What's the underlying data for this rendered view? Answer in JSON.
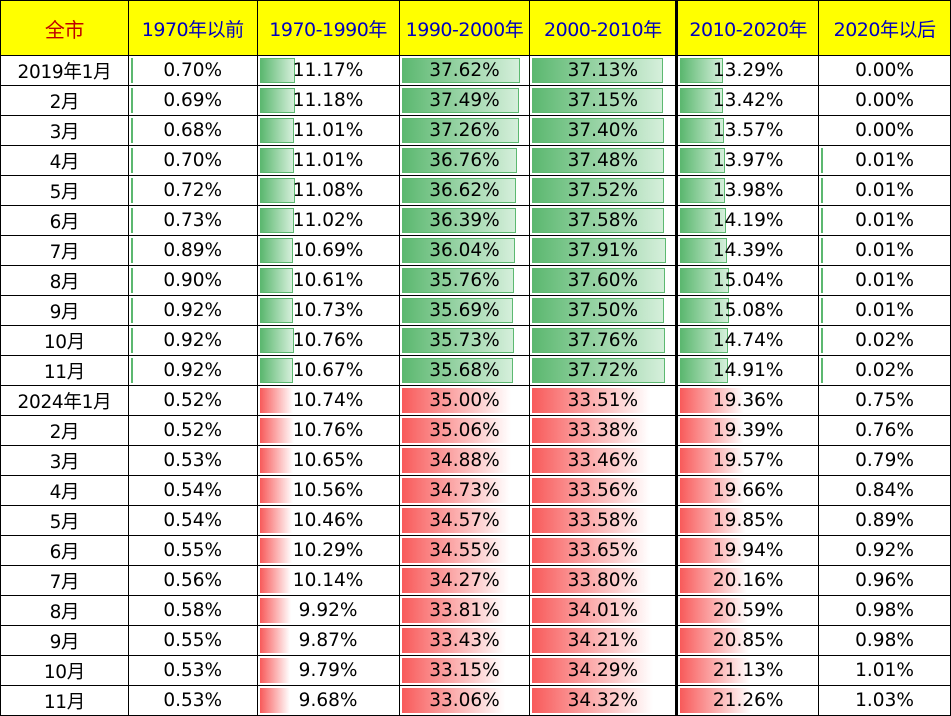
{
  "table": {
    "headers": [
      "全市",
      "1970年以前",
      "1970-1990年",
      "1990-2000年",
      "2000-2010年",
      "2010-2020年",
      "2020年以后"
    ],
    "colors": {
      "header_bg": "#ffff00",
      "header_first_text": "#c00000",
      "header_text": "#0000c0",
      "bar_green": "#5cb870",
      "bar_red": "#f85a5a"
    },
    "rows": [
      {
        "month": "2019年1月",
        "values": [
          "0.70%",
          "11.17%",
          "37.62%",
          "37.13%",
          "13.29%",
          "0.00%"
        ],
        "bars": [
          0.7,
          11.17,
          37.62,
          37.13,
          13.29,
          0.0
        ],
        "tone": "green"
      },
      {
        "month": "2月",
        "values": [
          "0.69%",
          "11.18%",
          "37.49%",
          "37.15%",
          "13.42%",
          "0.00%"
        ],
        "bars": [
          0.69,
          11.18,
          37.49,
          37.15,
          13.42,
          0.0
        ],
        "tone": "green"
      },
      {
        "month": "3月",
        "values": [
          "0.68%",
          "11.01%",
          "37.26%",
          "37.40%",
          "13.57%",
          "0.00%"
        ],
        "bars": [
          0.68,
          11.01,
          37.26,
          37.4,
          13.57,
          0.0
        ],
        "tone": "green"
      },
      {
        "month": "4月",
        "values": [
          "0.70%",
          "11.01%",
          "36.76%",
          "37.48%",
          "13.97%",
          "0.01%"
        ],
        "bars": [
          0.7,
          11.01,
          36.76,
          37.48,
          13.97,
          0.01
        ],
        "tone": "green"
      },
      {
        "month": "5月",
        "values": [
          "0.72%",
          "11.08%",
          "36.62%",
          "37.52%",
          "13.98%",
          "0.01%"
        ],
        "bars": [
          0.72,
          11.08,
          36.62,
          37.52,
          13.98,
          0.01
        ],
        "tone": "green"
      },
      {
        "month": "6月",
        "values": [
          "0.73%",
          "11.02%",
          "36.39%",
          "37.58%",
          "14.19%",
          "0.01%"
        ],
        "bars": [
          0.73,
          11.02,
          36.39,
          37.58,
          14.19,
          0.01
        ],
        "tone": "green"
      },
      {
        "month": "7月",
        "values": [
          "0.89%",
          "10.69%",
          "36.04%",
          "37.91%",
          "14.39%",
          "0.01%"
        ],
        "bars": [
          0.89,
          10.69,
          36.04,
          37.91,
          14.39,
          0.01
        ],
        "tone": "green"
      },
      {
        "month": "8月",
        "values": [
          "0.90%",
          "10.61%",
          "35.76%",
          "37.60%",
          "15.04%",
          "0.01%"
        ],
        "bars": [
          0.9,
          10.61,
          35.76,
          37.6,
          15.04,
          0.01
        ],
        "tone": "green"
      },
      {
        "month": "9月",
        "values": [
          "0.92%",
          "10.73%",
          "35.69%",
          "37.50%",
          "15.08%",
          "0.01%"
        ],
        "bars": [
          0.92,
          10.73,
          35.69,
          37.5,
          15.08,
          0.01
        ],
        "tone": "green"
      },
      {
        "month": "10月",
        "values": [
          "0.92%",
          "10.76%",
          "35.73%",
          "37.76%",
          "14.74%",
          "0.02%"
        ],
        "bars": [
          0.92,
          10.76,
          35.73,
          37.76,
          14.74,
          0.02
        ],
        "tone": "green"
      },
      {
        "month": "11月",
        "values": [
          "0.92%",
          "10.67%",
          "35.68%",
          "37.72%",
          "14.91%",
          "0.02%"
        ],
        "bars": [
          0.92,
          10.67,
          35.68,
          37.72,
          14.91,
          0.02
        ],
        "tone": "green"
      },
      {
        "month": "2024年1月",
        "values": [
          "0.52%",
          "10.74%",
          "35.00%",
          "33.51%",
          "19.36%",
          "0.75%"
        ],
        "bars": [
          0.52,
          10.74,
          35.0,
          33.51,
          19.36,
          0.75
        ],
        "tone": "red"
      },
      {
        "month": "2月",
        "values": [
          "0.52%",
          "10.76%",
          "35.06%",
          "33.38%",
          "19.39%",
          "0.76%"
        ],
        "bars": [
          0.52,
          10.76,
          35.06,
          33.38,
          19.39,
          0.76
        ],
        "tone": "red"
      },
      {
        "month": "3月",
        "values": [
          "0.53%",
          "10.65%",
          "34.88%",
          "33.46%",
          "19.57%",
          "0.79%"
        ],
        "bars": [
          0.53,
          10.65,
          34.88,
          33.46,
          19.57,
          0.79
        ],
        "tone": "red"
      },
      {
        "month": "4月",
        "values": [
          "0.54%",
          "10.56%",
          "34.73%",
          "33.56%",
          "19.66%",
          "0.84%"
        ],
        "bars": [
          0.54,
          10.56,
          34.73,
          33.56,
          19.66,
          0.84
        ],
        "tone": "red"
      },
      {
        "month": "5月",
        "values": [
          "0.54%",
          "10.46%",
          "34.57%",
          "33.58%",
          "19.85%",
          "0.89%"
        ],
        "bars": [
          0.54,
          10.46,
          34.57,
          33.58,
          19.85,
          0.89
        ],
        "tone": "red"
      },
      {
        "month": "6月",
        "values": [
          "0.55%",
          "10.29%",
          "34.55%",
          "33.65%",
          "19.94%",
          "0.92%"
        ],
        "bars": [
          0.55,
          10.29,
          34.55,
          33.65,
          19.94,
          0.92
        ],
        "tone": "red"
      },
      {
        "month": "7月",
        "values": [
          "0.56%",
          "10.14%",
          "34.27%",
          "33.80%",
          "20.16%",
          "0.96%"
        ],
        "bars": [
          0.56,
          10.14,
          34.27,
          33.8,
          20.16,
          0.96
        ],
        "tone": "red"
      },
      {
        "month": "8月",
        "values": [
          "0.58%",
          "9.92%",
          "33.81%",
          "34.01%",
          "20.59%",
          "0.98%"
        ],
        "bars": [
          0.58,
          9.92,
          33.81,
          34.01,
          20.59,
          0.98
        ],
        "tone": "red"
      },
      {
        "month": "9月",
        "values": [
          "0.55%",
          "9.87%",
          "33.43%",
          "34.21%",
          "20.85%",
          "0.98%"
        ],
        "bars": [
          0.55,
          9.87,
          33.43,
          34.21,
          20.85,
          0.98
        ],
        "tone": "red"
      },
      {
        "month": "10月",
        "values": [
          "0.53%",
          "9.79%",
          "33.15%",
          "34.29%",
          "21.13%",
          "1.01%"
        ],
        "bars": [
          0.53,
          9.79,
          33.15,
          34.29,
          21.13,
          1.01
        ],
        "tone": "red"
      },
      {
        "month": "11月",
        "values": [
          "0.53%",
          "9.68%",
          "33.06%",
          "34.32%",
          "21.26%",
          "1.03%"
        ],
        "bars": [
          0.53,
          9.68,
          33.06,
          34.32,
          21.26,
          1.03
        ],
        "tone": "red"
      }
    ]
  }
}
